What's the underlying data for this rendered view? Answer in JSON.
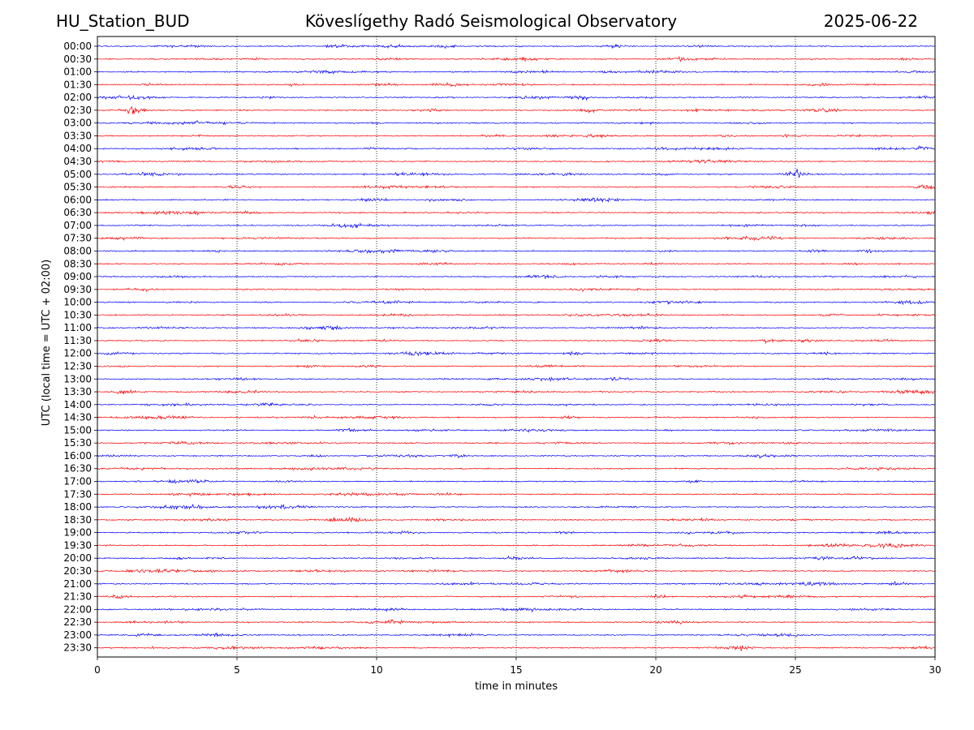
{
  "header": {
    "station": "HU_Station_BUD",
    "observatory": "Köveslígethy Radó Seismological Observatory",
    "date": "2025-06-22"
  },
  "chart_data": {
    "type": "line",
    "title": "Köveslígethy Radó Seismological Observatory",
    "xlabel": "time in minutes",
    "ylabel": "UTC (local time = UTC + 02:00)",
    "xlim": [
      0,
      30
    ],
    "xticks": [
      0,
      5,
      10,
      15,
      20,
      25,
      30
    ],
    "vertical_grid_minutes": [
      5,
      10,
      15,
      20,
      25
    ],
    "grid_style": "dotted vertical",
    "trace_colors": [
      "#0000ff",
      "#ff0000"
    ],
    "trace_labels": [
      "00:00",
      "00:30",
      "01:00",
      "01:30",
      "02:00",
      "02:30",
      "03:00",
      "03:30",
      "04:00",
      "04:30",
      "05:00",
      "05:30",
      "06:00",
      "06:30",
      "07:00",
      "07:30",
      "08:00",
      "08:30",
      "09:00",
      "09:30",
      "10:00",
      "10:30",
      "11:00",
      "11:30",
      "12:00",
      "12:30",
      "13:00",
      "13:30",
      "14:00",
      "14:30",
      "15:00",
      "15:30",
      "16:00",
      "16:30",
      "17:00",
      "17:30",
      "18:00",
      "18:30",
      "19:00",
      "19:30",
      "20:00",
      "20:30",
      "21:00",
      "21:30",
      "22:00",
      "22:30",
      "23:00",
      "23:30"
    ],
    "events": [
      {
        "trace": "00:00",
        "minute": 18.5,
        "amplitude": 0.5
      },
      {
        "trace": "00:30",
        "minute": 15.4,
        "amplitude": 0.5
      },
      {
        "trace": "00:30",
        "minute": 21.0,
        "amplitude": 0.4
      },
      {
        "trace": "00:30",
        "minute": 29.0,
        "amplitude": 0.4
      },
      {
        "trace": "01:30",
        "minute": 7.0,
        "amplitude": 0.35
      },
      {
        "trace": "02:00",
        "minute": 17.3,
        "amplitude": 0.8
      },
      {
        "trace": "02:30",
        "minute": 1.3,
        "amplitude": 1.3
      },
      {
        "trace": "02:30",
        "minute": 17.6,
        "amplitude": 0.6
      },
      {
        "trace": "03:30",
        "minute": 14.2,
        "amplitude": 0.4
      },
      {
        "trace": "04:00",
        "minute": 29.6,
        "amplitude": 0.7
      },
      {
        "trace": "05:00",
        "minute": 25.0,
        "amplitude": 1.2
      },
      {
        "trace": "06:30",
        "minute": 3.6,
        "amplitude": 0.5
      },
      {
        "trace": "08:00",
        "minute": 27.7,
        "amplitude": 0.5
      },
      {
        "trace": "10:30",
        "minute": 26.3,
        "amplitude": 0.5
      },
      {
        "trace": "11:30",
        "minute": 24.0,
        "amplitude": 0.7
      },
      {
        "trace": "12:00",
        "minute": 17.0,
        "amplitude": 0.6
      },
      {
        "trace": "13:00",
        "minute": 18.6,
        "amplitude": 0.5
      },
      {
        "trace": "13:30",
        "minute": 1.0,
        "amplitude": 0.8
      },
      {
        "trace": "14:30",
        "minute": 16.8,
        "amplitude": 0.5
      },
      {
        "trace": "19:00",
        "minute": 16.8,
        "amplitude": 0.5
      },
      {
        "trace": "20:00",
        "minute": 15.0,
        "amplitude": 0.7
      },
      {
        "trace": "21:00",
        "minute": 28.6,
        "amplitude": 0.7
      },
      {
        "trace": "21:30",
        "minute": 0.8,
        "amplitude": 0.6
      },
      {
        "trace": "21:30",
        "minute": 20.0,
        "amplitude": 0.5
      },
      {
        "trace": "23:30",
        "minute": 23.2,
        "amplitude": 0.6
      }
    ]
  }
}
